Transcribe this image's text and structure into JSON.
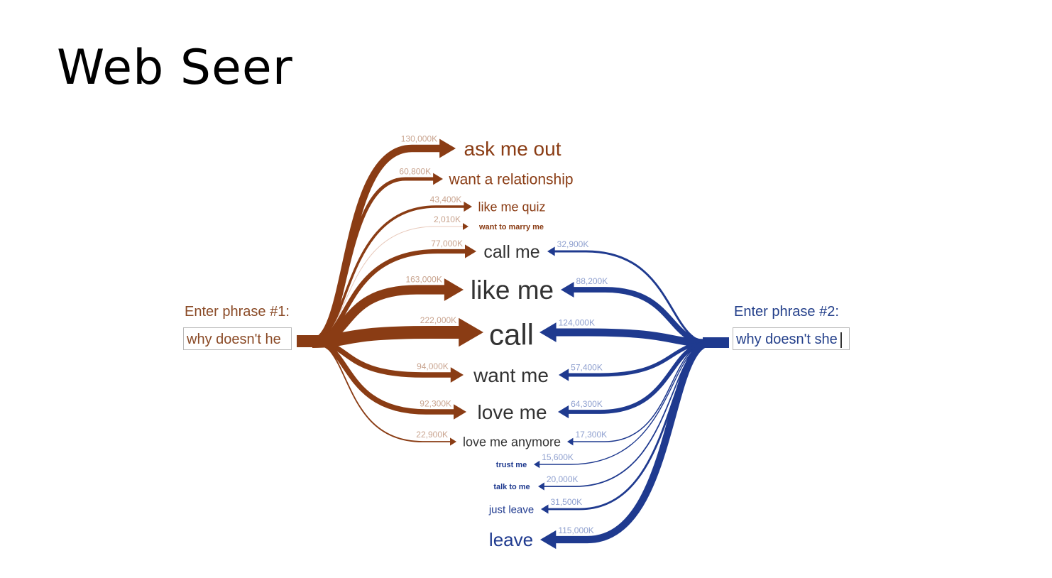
{
  "slide": {
    "title": "Web Seer"
  },
  "phrase1": {
    "label": "Enter phrase #1:",
    "value": "why doesn't he"
  },
  "phrase2": {
    "label": "Enter phrase #2:",
    "value": "why doesn't she"
  },
  "colors": {
    "phrase1": "#8a3c14",
    "phrase2": "#1f3a8f"
  },
  "completions": [
    {
      "text": "ask me out",
      "count1": "130,000K",
      "count2": null
    },
    {
      "text": "want a relationship",
      "count1": "60,800K",
      "count2": null
    },
    {
      "text": "like me quiz",
      "count1": "43,400K",
      "count2": null
    },
    {
      "text": "want to marry me",
      "count1": "2,010K",
      "count2": null
    },
    {
      "text": "call me",
      "count1": "77,000K",
      "count2": "32,900K"
    },
    {
      "text": "like me",
      "count1": "163,000K",
      "count2": "88,200K"
    },
    {
      "text": "call",
      "count1": "222,000K",
      "count2": "124,000K"
    },
    {
      "text": "want me",
      "count1": "94,000K",
      "count2": "57,400K"
    },
    {
      "text": "love me",
      "count1": "92,300K",
      "count2": "64,300K"
    },
    {
      "text": "love me anymore",
      "count1": "22,900K",
      "count2": "17,300K"
    },
    {
      "text": "trust me",
      "count1": null,
      "count2": "15,600K"
    },
    {
      "text": "talk to me",
      "count1": null,
      "count2": "20,000K"
    },
    {
      "text": "just leave",
      "count1": null,
      "count2": "31,500K"
    },
    {
      "text": "leave",
      "count1": null,
      "count2": "115,000K"
    }
  ]
}
